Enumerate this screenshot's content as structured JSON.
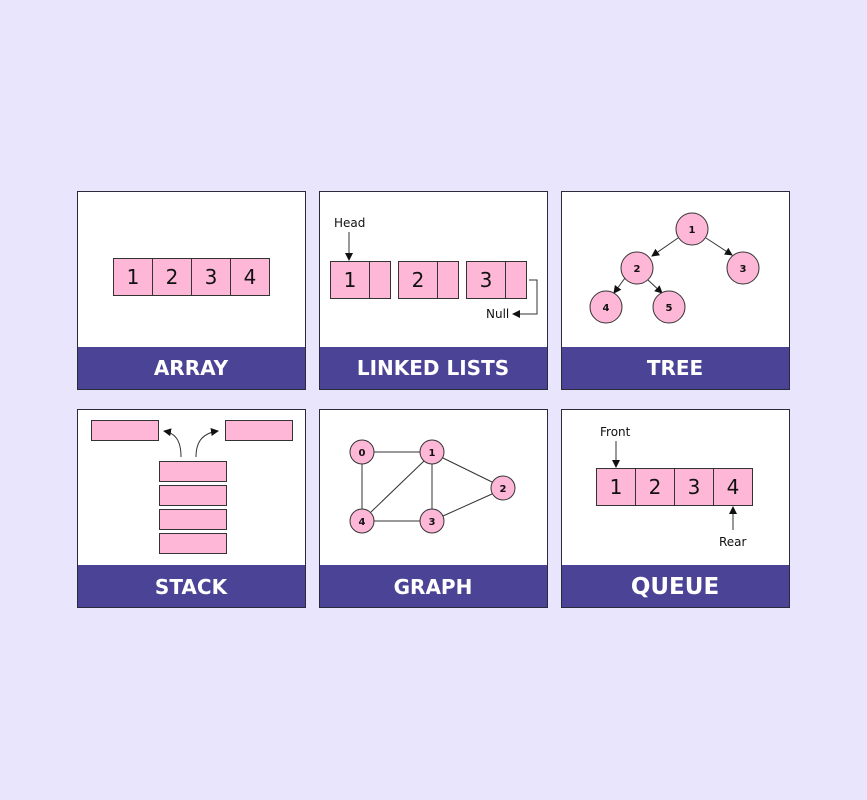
{
  "colors": {
    "background": "#e8e5fd",
    "title_bar": "#4b4496",
    "cell": "#ffb7d8"
  },
  "panels": [
    {
      "title": "ARRAY",
      "cells": [
        "1",
        "2",
        "3",
        "4"
      ]
    },
    {
      "title": "LINKED LISTS",
      "head": "Head",
      "null": "Null",
      "nodes": [
        "1",
        "2",
        "3"
      ]
    },
    {
      "title": "TREE",
      "nodes": [
        "1",
        "2",
        "3",
        "4",
        "5"
      ]
    },
    {
      "title": "STACK"
    },
    {
      "title": "GRAPH",
      "nodes": [
        "0",
        "1",
        "2",
        "3",
        "4"
      ]
    },
    {
      "title": "QUEUE",
      "front": "Front",
      "rear": "Rear",
      "cells": [
        "1",
        "2",
        "3",
        "4"
      ]
    }
  ]
}
